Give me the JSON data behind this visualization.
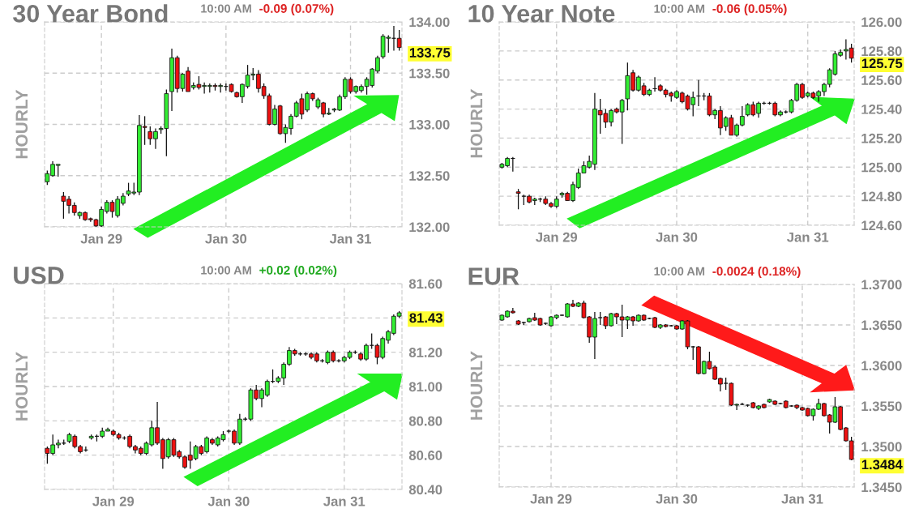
{
  "chart_data": [
    {
      "type": "candlestick",
      "title": "30 Year Bond",
      "ylabel": "HOURLY",
      "annotations": [
        "10:00 AM",
        "-0.09 (0.07%)",
        "133.75"
      ],
      "categories": [
        null,
        null,
        null,
        null,
        null,
        null,
        null,
        null,
        null,
        null,
        "Jan 29",
        null,
        null,
        null,
        null,
        null,
        null,
        null,
        null,
        null,
        null,
        null,
        null,
        null,
        null,
        null,
        null,
        null,
        null,
        null,
        null,
        null,
        null,
        "Jan 30",
        null,
        null,
        null,
        null,
        null,
        null,
        null,
        null,
        null,
        null,
        null,
        null,
        null,
        null,
        null,
        null,
        null,
        null,
        null,
        null,
        null,
        null,
        "Jan 31",
        null,
        null,
        null,
        null,
        null,
        null,
        null,
        null,
        null
      ],
      "ohlc": [
        [
          132.44,
          132.55,
          132.41,
          132.52
        ],
        [
          132.5,
          132.64,
          132.49,
          132.61
        ],
        [
          132.6,
          132.61,
          132.49,
          132.61
        ],
        [
          132.3,
          132.34,
          132.08,
          132.25
        ],
        [
          132.27,
          132.3,
          132.13,
          132.21
        ],
        [
          132.21,
          132.24,
          132.11,
          132.14
        ],
        [
          132.11,
          132.15,
          132.08,
          132.14
        ],
        [
          132.14,
          132.15,
          132.06,
          132.07
        ],
        [
          132.08,
          132.09,
          132.05,
          132.07
        ],
        [
          132.07,
          132.08,
          132.0,
          132.01
        ],
        [
          132.01,
          132.2,
          132.0,
          132.17
        ],
        [
          132.15,
          132.26,
          132.13,
          132.24
        ],
        [
          132.24,
          132.26,
          132.09,
          132.15
        ],
        [
          132.11,
          132.3,
          132.09,
          132.27
        ],
        [
          132.23,
          132.33,
          132.21,
          132.3
        ],
        [
          132.32,
          132.43,
          132.3,
          132.35
        ],
        [
          132.33,
          132.43,
          132.31,
          132.34
        ],
        [
          132.34,
          133.09,
          132.31,
          132.99
        ],
        [
          132.98,
          133.08,
          132.8,
          132.97
        ],
        [
          132.93,
          132.98,
          132.8,
          132.86
        ],
        [
          132.86,
          132.96,
          132.76,
          132.93
        ],
        [
          132.95,
          132.98,
          132.91,
          132.96
        ],
        [
          132.96,
          133.34,
          132.69,
          133.3
        ],
        [
          133.32,
          133.74,
          133.13,
          133.65
        ],
        [
          133.65,
          133.67,
          133.31,
          133.35
        ],
        [
          133.35,
          133.5,
          133.32,
          133.49
        ],
        [
          133.52,
          133.56,
          133.32,
          133.32
        ],
        [
          133.36,
          133.41,
          133.34,
          133.38
        ],
        [
          133.39,
          133.47,
          133.34,
          133.36
        ],
        [
          133.37,
          133.41,
          133.3,
          133.38
        ],
        [
          133.37,
          133.4,
          133.31,
          133.38
        ],
        [
          133.38,
          133.4,
          133.33,
          133.37
        ],
        [
          133.37,
          133.4,
          133.31,
          133.38
        ],
        [
          133.37,
          133.4,
          133.33,
          133.37
        ],
        [
          133.39,
          133.4,
          133.31,
          133.32
        ],
        [
          133.31,
          133.32,
          133.26,
          133.27
        ],
        [
          133.27,
          133.4,
          133.21,
          133.39
        ],
        [
          133.37,
          133.58,
          133.35,
          133.48
        ],
        [
          133.48,
          133.55,
          133.43,
          133.49
        ],
        [
          133.49,
          133.53,
          133.31,
          133.35
        ],
        [
          133.37,
          133.4,
          133.25,
          133.28
        ],
        [
          133.28,
          133.3,
          132.99,
          133.0
        ],
        [
          133.0,
          133.19,
          132.99,
          133.15
        ],
        [
          133.18,
          133.19,
          132.9,
          132.91
        ],
        [
          132.91,
          133.0,
          132.82,
          132.97
        ],
        [
          132.96,
          133.1,
          132.9,
          133.08
        ],
        [
          133.08,
          133.23,
          133.07,
          133.21
        ],
        [
          133.25,
          133.3,
          133.05,
          133.1
        ],
        [
          133.14,
          133.32,
          133.12,
          133.3
        ],
        [
          133.3,
          133.31,
          133.23,
          133.25
        ],
        [
          133.17,
          133.26,
          133.15,
          133.24
        ],
        [
          133.21,
          133.22,
          133.07,
          133.1
        ],
        [
          133.1,
          133.16,
          133.09,
          133.11
        ],
        [
          133.14,
          133.16,
          133.12,
          133.15
        ],
        [
          133.14,
          133.29,
          133.13,
          133.27
        ],
        [
          133.27,
          133.46,
          133.25,
          133.44
        ],
        [
          133.44,
          133.46,
          133.3,
          133.32
        ],
        [
          133.32,
          133.38,
          133.3,
          133.37
        ],
        [
          133.33,
          133.39,
          133.31,
          133.37
        ],
        [
          133.37,
          133.46,
          133.29,
          133.44
        ],
        [
          133.38,
          133.55,
          133.36,
          133.54
        ],
        [
          133.52,
          133.67,
          133.5,
          133.65
        ],
        [
          133.66,
          133.88,
          133.64,
          133.86
        ],
        [
          133.84,
          133.87,
          133.7,
          133.85
        ],
        [
          133.84,
          133.96,
          133.72,
          133.84
        ],
        [
          133.84,
          133.92,
          133.72,
          133.75
        ]
      ],
      "ylim": [
        132.0,
        134.0
      ],
      "yticks": [
        {
          "value": 132.0,
          "label": "132.00"
        },
        {
          "value": 132.5,
          "label": "132.50"
        },
        {
          "value": 133.0,
          "label": "133.00"
        },
        {
          "value": 133.5,
          "label": "133.50"
        },
        {
          "value": 134.0,
          "label": "134.00"
        }
      ],
      "grid": true
    },
    {
      "type": "candlestick",
      "title": "10 Year Note",
      "ylabel": "HOURLY",
      "annotations": [
        "10:00 AM",
        "-0.06 (0.05%)",
        "125.75"
      ],
      "categories": [
        null,
        null,
        null,
        null,
        null,
        null,
        null,
        null,
        null,
        null,
        "Jan 29",
        null,
        null,
        null,
        null,
        null,
        null,
        null,
        null,
        null,
        null,
        null,
        null,
        null,
        null,
        null,
        null,
        null,
        null,
        null,
        null,
        null,
        "Jan 30",
        null,
        null,
        null,
        null,
        null,
        null,
        null,
        null,
        null,
        null,
        null,
        null,
        null,
        null,
        null,
        null,
        null,
        null,
        null,
        null,
        null,
        null,
        null,
        "Jan 31",
        null,
        null,
        null,
        null,
        null,
        null,
        null,
        null
      ],
      "ohlc": [
        [
          125.0,
          125.03,
          124.99,
          125.02
        ],
        [
          125.01,
          125.07,
          125.0,
          125.06
        ],
        [
          125.06,
          125.07,
          124.97,
          125.06
        ],
        [
          124.83,
          124.85,
          124.71,
          124.82
        ],
        [
          124.8,
          124.81,
          124.74,
          124.8
        ],
        [
          124.8,
          124.81,
          124.75,
          124.76
        ],
        [
          124.77,
          124.79,
          124.74,
          124.78
        ],
        [
          124.78,
          124.79,
          124.76,
          124.78
        ],
        [
          124.78,
          124.8,
          124.74,
          124.75
        ],
        [
          124.75,
          124.76,
          124.72,
          124.73
        ],
        [
          124.73,
          124.8,
          124.72,
          124.78
        ],
        [
          124.81,
          124.83,
          124.79,
          124.82
        ],
        [
          124.82,
          124.83,
          124.77,
          124.77
        ],
        [
          124.77,
          124.9,
          124.76,
          124.88
        ],
        [
          124.86,
          124.99,
          124.85,
          124.96
        ],
        [
          124.96,
          125.04,
          124.96,
          125.01
        ],
        [
          125.0,
          125.08,
          124.99,
          125.04
        ],
        [
          125.02,
          125.51,
          124.98,
          125.4
        ],
        [
          125.39,
          125.47,
          125.23,
          125.36
        ],
        [
          125.37,
          125.4,
          125.27,
          125.31
        ],
        [
          125.31,
          125.4,
          125.28,
          125.39
        ],
        [
          125.4,
          125.41,
          125.37,
          125.38
        ],
        [
          125.38,
          125.47,
          125.16,
          125.46
        ],
        [
          125.47,
          125.72,
          125.39,
          125.63
        ],
        [
          125.65,
          125.67,
          125.52,
          125.53
        ],
        [
          125.53,
          125.63,
          125.52,
          125.62
        ],
        [
          125.56,
          125.58,
          125.49,
          125.5
        ],
        [
          125.5,
          125.54,
          125.49,
          125.53
        ],
        [
          125.54,
          125.62,
          125.52,
          125.54
        ],
        [
          125.56,
          125.57,
          125.52,
          125.53
        ],
        [
          125.53,
          125.54,
          125.48,
          125.5
        ],
        [
          125.51,
          125.52,
          125.45,
          125.49
        ],
        [
          125.48,
          125.53,
          125.47,
          125.52
        ],
        [
          125.51,
          125.52,
          125.44,
          125.45
        ],
        [
          125.49,
          125.5,
          125.39,
          125.4
        ],
        [
          125.43,
          125.52,
          125.35,
          125.48
        ],
        [
          125.49,
          125.6,
          125.42,
          125.49
        ],
        [
          125.49,
          125.51,
          125.46,
          125.49
        ],
        [
          125.49,
          125.51,
          125.35,
          125.36
        ],
        [
          125.36,
          125.4,
          125.33,
          125.39
        ],
        [
          125.39,
          125.42,
          125.22,
          125.27
        ],
        [
          125.28,
          125.35,
          125.25,
          125.34
        ],
        [
          125.34,
          125.36,
          125.22,
          125.22
        ],
        [
          125.22,
          125.3,
          125.21,
          125.29
        ],
        [
          125.29,
          125.42,
          125.28,
          125.35
        ],
        [
          125.36,
          125.44,
          125.35,
          125.43
        ],
        [
          125.43,
          125.45,
          125.35,
          125.36
        ],
        [
          125.37,
          125.45,
          125.34,
          125.44
        ],
        [
          125.44,
          125.45,
          125.43,
          125.44
        ],
        [
          125.44,
          125.45,
          125.43,
          125.44
        ],
        [
          125.44,
          125.45,
          125.35,
          125.36
        ],
        [
          125.36,
          125.39,
          125.35,
          125.38
        ],
        [
          125.38,
          125.39,
          125.37,
          125.38
        ],
        [
          125.38,
          125.47,
          125.37,
          125.46
        ],
        [
          125.46,
          125.58,
          125.45,
          125.57
        ],
        [
          125.57,
          125.58,
          125.47,
          125.48
        ],
        [
          125.49,
          125.52,
          125.48,
          125.51
        ],
        [
          125.51,
          125.52,
          125.47,
          125.48
        ],
        [
          125.49,
          125.53,
          125.45,
          125.52
        ],
        [
          125.52,
          125.58,
          125.49,
          125.57
        ],
        [
          125.57,
          125.68,
          125.55,
          125.67
        ],
        [
          125.64,
          125.8,
          125.63,
          125.78
        ],
        [
          125.77,
          125.81,
          125.76,
          125.79
        ],
        [
          125.8,
          125.88,
          125.74,
          125.81
        ],
        [
          125.82,
          125.85,
          125.72,
          125.75
        ]
      ],
      "ylim": [
        124.6,
        126.0
      ],
      "yticks": [
        {
          "value": 124.6,
          "label": "124.60"
        },
        {
          "value": 124.8,
          "label": "124.80"
        },
        {
          "value": 125.0,
          "label": "125.00"
        },
        {
          "value": 125.2,
          "label": "125.20"
        },
        {
          "value": 125.4,
          "label": "125.40"
        },
        {
          "value": 125.6,
          "label": "125.60"
        },
        {
          "value": 125.8,
          "label": "125.80"
        },
        {
          "value": 126.0,
          "label": "126.00"
        }
      ],
      "grid": true
    },
    {
      "type": "candlestick",
      "title": "USD",
      "ylabel": "HOURLY",
      "annotations": [
        "10:00 AM",
        "+0.02 (0.02%)",
        "81.43"
      ],
      "categories": [
        null,
        null,
        null,
        null,
        null,
        null,
        null,
        null,
        null,
        null,
        null,
        null,
        "Jan 29",
        null,
        null,
        null,
        null,
        null,
        null,
        null,
        null,
        null,
        null,
        null,
        null,
        null,
        null,
        null,
        null,
        null,
        null,
        null,
        null,
        "Jan 30",
        null,
        null,
        null,
        null,
        null,
        null,
        null,
        null,
        null,
        null,
        null,
        null,
        null,
        null,
        null,
        null,
        null,
        null,
        null,
        null,
        "Jan 31",
        null,
        null,
        null,
        null,
        null,
        null,
        null,
        null,
        null,
        null
      ],
      "ohlc": [
        [
          80.64,
          80.65,
          80.55,
          80.61
        ],
        [
          80.61,
          80.72,
          80.6,
          80.66
        ],
        [
          80.66,
          80.69,
          80.64,
          80.67
        ],
        [
          80.67,
          80.69,
          80.66,
          80.67
        ],
        [
          80.68,
          80.73,
          80.67,
          80.72
        ],
        [
          80.71,
          80.72,
          80.64,
          80.65
        ],
        [
          80.65,
          80.66,
          80.61,
          80.62
        ],
        [
          80.63,
          80.65,
          80.62,
          80.63
        ],
        [
          80.7,
          80.72,
          80.69,
          80.71
        ],
        [
          80.71,
          80.72,
          80.68,
          80.71
        ],
        [
          80.71,
          80.76,
          80.7,
          80.74
        ],
        [
          80.74,
          80.76,
          80.74,
          80.75
        ],
        [
          80.74,
          80.75,
          80.71,
          80.72
        ],
        [
          80.72,
          80.73,
          80.69,
          80.7
        ],
        [
          80.7,
          80.71,
          80.69,
          80.7
        ],
        [
          80.71,
          80.72,
          80.64,
          80.65
        ],
        [
          80.65,
          80.66,
          80.61,
          80.63
        ],
        [
          80.64,
          80.65,
          80.6,
          80.61
        ],
        [
          80.61,
          80.68,
          80.6,
          80.67
        ],
        [
          80.66,
          80.8,
          80.65,
          80.76
        ],
        [
          80.76,
          80.91,
          80.66,
          80.67
        ],
        [
          80.69,
          80.7,
          80.52,
          80.58
        ],
        [
          80.59,
          80.7,
          80.58,
          80.69
        ],
        [
          80.69,
          80.7,
          80.59,
          80.6
        ],
        [
          80.62,
          80.63,
          80.58,
          80.59
        ],
        [
          80.59,
          80.6,
          80.52,
          80.53
        ],
        [
          80.6,
          80.68,
          80.52,
          80.57
        ],
        [
          80.58,
          80.66,
          80.57,
          80.65
        ],
        [
          80.65,
          80.66,
          80.6,
          80.61
        ],
        [
          80.62,
          80.71,
          80.61,
          80.7
        ],
        [
          80.69,
          80.7,
          80.66,
          80.67
        ],
        [
          80.66,
          80.71,
          80.65,
          80.7
        ],
        [
          80.69,
          80.74,
          80.68,
          80.72
        ],
        [
          80.74,
          80.75,
          80.73,
          80.74
        ],
        [
          80.74,
          80.75,
          80.66,
          80.67
        ],
        [
          80.67,
          80.84,
          80.66,
          80.81
        ],
        [
          80.81,
          80.82,
          80.8,
          80.81
        ],
        [
          80.81,
          80.99,
          80.8,
          80.98
        ],
        [
          80.98,
          81.01,
          80.92,
          80.93
        ],
        [
          80.93,
          80.99,
          80.88,
          80.98
        ],
        [
          80.95,
          81.04,
          80.94,
          81.03
        ],
        [
          81.03,
          81.1,
          81.02,
          81.03
        ],
        [
          81.03,
          81.06,
          81.02,
          81.05
        ],
        [
          81.05,
          81.14,
          81.01,
          81.13
        ],
        [
          81.13,
          81.23,
          81.12,
          81.21
        ],
        [
          81.21,
          81.22,
          81.18,
          81.19
        ],
        [
          81.19,
          81.2,
          81.18,
          81.19
        ],
        [
          81.19,
          81.2,
          81.18,
          81.19
        ],
        [
          81.19,
          81.2,
          81.16,
          81.17
        ],
        [
          81.19,
          81.2,
          81.14,
          81.15
        ],
        [
          81.15,
          81.16,
          81.14,
          81.15
        ],
        [
          81.14,
          81.21,
          81.13,
          81.2
        ],
        [
          81.2,
          81.21,
          81.14,
          81.15
        ],
        [
          81.15,
          81.16,
          81.14,
          81.15
        ],
        [
          81.15,
          81.18,
          81.14,
          81.17
        ],
        [
          81.17,
          81.21,
          81.16,
          81.2
        ],
        [
          81.2,
          81.21,
          81.19,
          81.2
        ],
        [
          81.19,
          81.2,
          81.15,
          81.16
        ],
        [
          81.16,
          81.25,
          81.15,
          81.24
        ],
        [
          81.24,
          81.31,
          81.22,
          81.24
        ],
        [
          81.24,
          81.25,
          81.13,
          81.17
        ],
        [
          81.17,
          81.29,
          81.16,
          81.28
        ],
        [
          81.27,
          81.33,
          81.25,
          81.32
        ],
        [
          81.31,
          81.42,
          81.3,
          81.41
        ],
        [
          81.41,
          81.44,
          81.4,
          81.43
        ]
      ],
      "ylim": [
        80.4,
        81.6
      ],
      "yticks": [
        {
          "value": 80.4,
          "label": "80.40"
        },
        {
          "value": 80.6,
          "label": "80.60"
        },
        {
          "value": 80.8,
          "label": "80.80"
        },
        {
          "value": 81.0,
          "label": "81.00"
        },
        {
          "value": 81.2,
          "label": "81.20"
        },
        {
          "value": 81.4,
          "label": null
        },
        {
          "value": 81.6,
          "label": "81.60"
        }
      ],
      "grid": true
    },
    {
      "type": "candlestick",
      "title": "EUR",
      "ylabel": "HOURLY",
      "annotations": [
        "10:00 AM",
        "-0.0024 (0.18%)",
        "1.3484"
      ],
      "categories": [
        null,
        null,
        null,
        null,
        null,
        null,
        null,
        null,
        null,
        "Jan 29",
        null,
        null,
        null,
        null,
        null,
        null,
        null,
        null,
        null,
        null,
        null,
        null,
        null,
        null,
        null,
        null,
        null,
        null,
        null,
        null,
        null,
        null,
        "Jan 30",
        null,
        null,
        null,
        null,
        null,
        null,
        null,
        null,
        null,
        null,
        null,
        null,
        null,
        null,
        null,
        null,
        null,
        null,
        null,
        null,
        null,
        null,
        "Jan 31",
        null,
        null,
        null,
        null,
        null,
        null,
        null,
        null,
        null
      ],
      "ohlc": [
        [
          1.3656,
          1.3663,
          1.3655,
          1.3662
        ],
        [
          1.366,
          1.3668,
          1.3659,
          1.3667
        ],
        [
          1.3667,
          1.3671,
          1.3664,
          1.3665
        ],
        [
          1.3655,
          1.3656,
          1.365,
          1.3651
        ],
        [
          1.3653,
          1.3654,
          1.365,
          1.3653
        ],
        [
          1.3654,
          1.3659,
          1.3653,
          1.3658
        ],
        [
          1.3659,
          1.3665,
          1.3655,
          1.3656
        ],
        [
          1.3658,
          1.3659,
          1.3649,
          1.365
        ],
        [
          1.3652,
          1.3653,
          1.365,
          1.3652
        ],
        [
          1.3649,
          1.3661,
          1.3648,
          1.366
        ],
        [
          1.3659,
          1.3663,
          1.3657,
          1.3662
        ],
        [
          1.3662,
          1.3663,
          1.3661,
          1.3662
        ],
        [
          1.366,
          1.3677,
          1.3659,
          1.3676
        ],
        [
          1.3676,
          1.3681,
          1.3672,
          1.3673
        ],
        [
          1.3673,
          1.3678,
          1.3672,
          1.3677
        ],
        [
          1.3677,
          1.368,
          1.3658,
          1.3659
        ],
        [
          1.366,
          1.3661,
          1.3628,
          1.3635
        ],
        [
          1.3635,
          1.3666,
          1.3608,
          1.3658
        ],
        [
          1.3659,
          1.3666,
          1.365,
          1.3659
        ],
        [
          1.366,
          1.3661,
          1.3645,
          1.3649
        ],
        [
          1.3649,
          1.3665,
          1.3648,
          1.3664
        ],
        [
          1.3664,
          1.3665,
          1.3651,
          1.366
        ],
        [
          1.366,
          1.3675,
          1.3635,
          1.3656
        ],
        [
          1.3656,
          1.3661,
          1.3645,
          1.366
        ],
        [
          1.366,
          1.3661,
          1.3649,
          1.3655
        ],
        [
          1.3655,
          1.3663,
          1.3654,
          1.3662
        ],
        [
          1.3662,
          1.3663,
          1.3655,
          1.3656
        ],
        [
          1.3658,
          1.3659,
          1.3657,
          1.3658
        ],
        [
          1.3659,
          1.366,
          1.3646,
          1.3647
        ],
        [
          1.3647,
          1.3651,
          1.3645,
          1.365
        ],
        [
          1.365,
          1.3651,
          1.3647,
          1.3648
        ],
        [
          1.3649,
          1.365,
          1.3648,
          1.3649
        ],
        [
          1.3649,
          1.365,
          1.3644,
          1.3645
        ],
        [
          1.3645,
          1.3656,
          1.3644,
          1.3655
        ],
        [
          1.3655,
          1.3656,
          1.362,
          1.3623
        ],
        [
          1.3623,
          1.3624,
          1.3607,
          1.3623
        ],
        [
          1.3623,
          1.3624,
          1.3589,
          1.359
        ],
        [
          1.359,
          1.3606,
          1.3589,
          1.3605
        ],
        [
          1.3605,
          1.3617,
          1.3595,
          1.3596
        ],
        [
          1.3598,
          1.36,
          1.3582,
          1.3583
        ],
        [
          1.3584,
          1.3585,
          1.3568,
          1.3577
        ],
        [
          1.3578,
          1.3585,
          1.357,
          1.3578
        ],
        [
          1.3578,
          1.3579,
          1.355,
          1.3551
        ],
        [
          1.3551,
          1.3553,
          1.3545,
          1.3552
        ],
        [
          1.3552,
          1.3554,
          1.3551,
          1.3552
        ],
        [
          1.3551,
          1.3552,
          1.3549,
          1.3551
        ],
        [
          1.3554,
          1.3555,
          1.3547,
          1.3548
        ],
        [
          1.3547,
          1.3551,
          1.3545,
          1.355
        ],
        [
          1.3552,
          1.3553,
          1.3547,
          1.3548
        ],
        [
          1.3555,
          1.3559,
          1.3554,
          1.3558
        ],
        [
          1.3556,
          1.3557,
          1.3551,
          1.3552
        ],
        [
          1.3553,
          1.3554,
          1.3552,
          1.3553
        ],
        [
          1.3556,
          1.3557,
          1.3547,
          1.3548
        ],
        [
          1.355,
          1.3551,
          1.3549,
          1.355
        ],
        [
          1.3551,
          1.3552,
          1.3546,
          1.3548
        ],
        [
          1.3548,
          1.3549,
          1.3544,
          1.3545
        ],
        [
          1.3547,
          1.3548,
          1.3537,
          1.3538
        ],
        [
          1.3538,
          1.3547,
          1.3532,
          1.3546
        ],
        [
          1.3546,
          1.3559,
          1.3545,
          1.3553
        ],
        [
          1.3553,
          1.3554,
          1.3537,
          1.3538
        ],
        [
          1.3539,
          1.354,
          1.3516,
          1.353
        ],
        [
          1.353,
          1.3561,
          1.3529,
          1.3549
        ],
        [
          1.3549,
          1.355,
          1.352,
          1.3521
        ],
        [
          1.3523,
          1.3524,
          1.3506,
          1.3507
        ],
        [
          1.3507,
          1.3512,
          1.3483,
          1.3484
        ]
      ],
      "ylim": [
        1.345,
        1.37
      ],
      "yticks": [
        {
          "value": 1.345,
          "label": "1.3450"
        },
        {
          "value": 1.35,
          "label": "1.3500"
        },
        {
          "value": 1.355,
          "label": "1.3550"
        },
        {
          "value": 1.36,
          "label": "1.3600"
        },
        {
          "value": 1.365,
          "label": "1.3650"
        },
        {
          "value": 1.37,
          "label": "1.3700"
        }
      ],
      "grid": true
    }
  ]
}
